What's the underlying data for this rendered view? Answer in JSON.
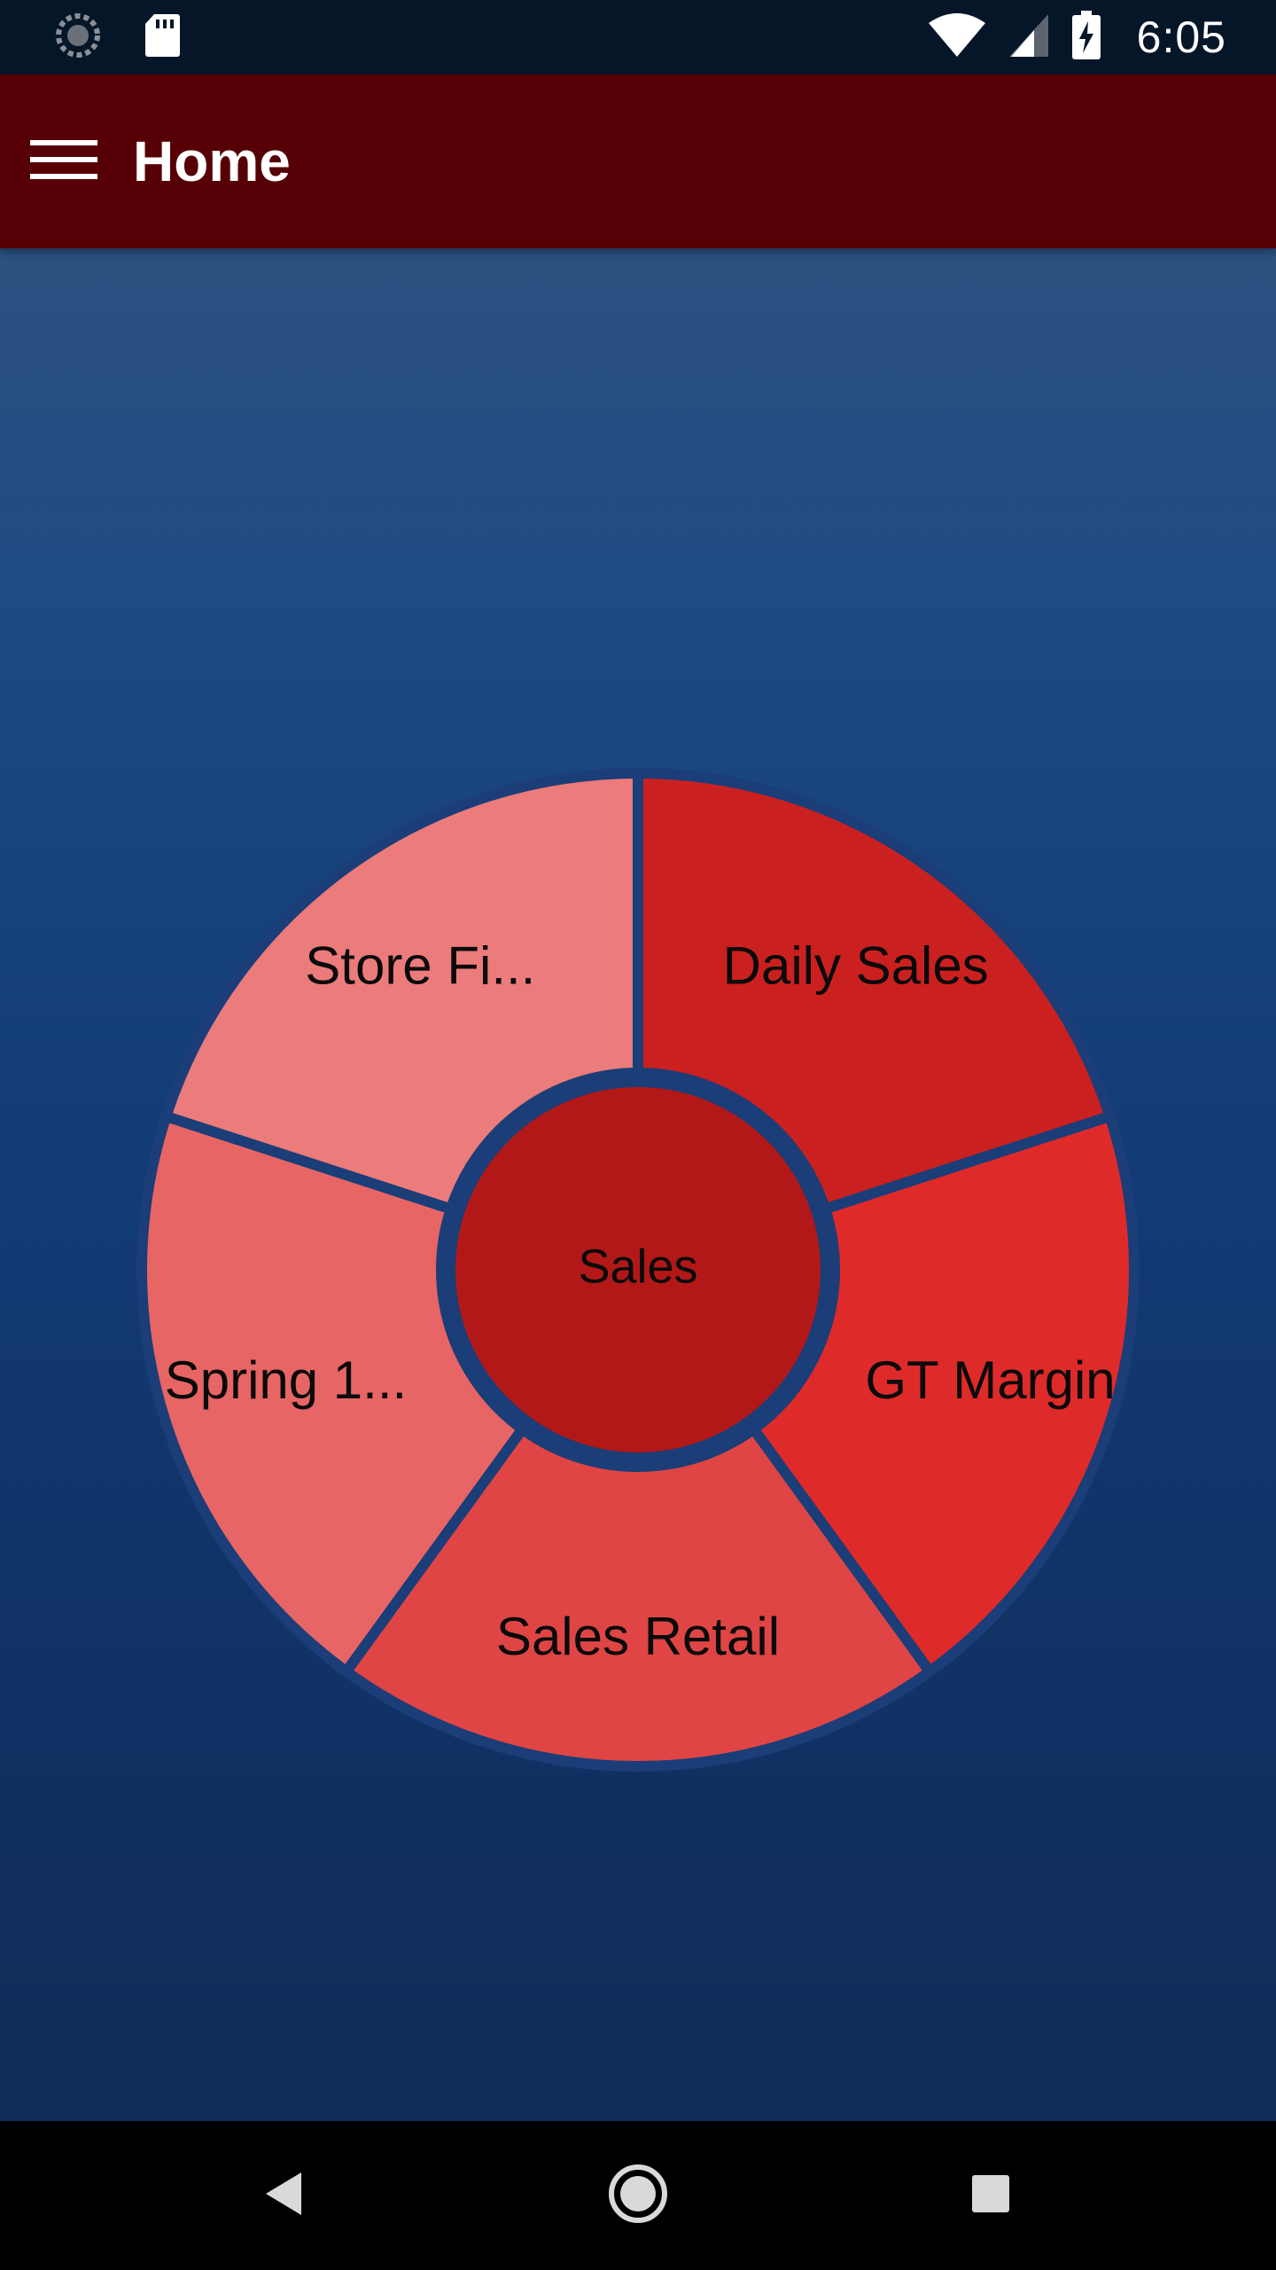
{
  "status_bar": {
    "time": "6:05",
    "left_icons": [
      "sync-icon",
      "sd-card-icon"
    ],
    "right_icons": [
      "wifi-icon",
      "cell-signal-icon",
      "battery-charging-icon"
    ]
  },
  "app_bar": {
    "title": "Home",
    "menu_icon": "hamburger-menu-icon",
    "color": "#560005"
  },
  "wheel": {
    "center": {
      "label": "Sales",
      "color": "#b31818"
    },
    "segments": [
      {
        "label": "Daily Sales",
        "color": "#cb2020"
      },
      {
        "label": "GT Margin",
        "color": "#df2a2a"
      },
      {
        "label": "Sales Retail",
        "color": "#e04545"
      },
      {
        "label": "Spring 1...",
        "color": "#e86565"
      },
      {
        "label": "Store Fi...",
        "color": "#ec7b7b"
      }
    ],
    "separator_color": "#1b3d78"
  },
  "nav_bar": {
    "buttons": [
      "back-icon",
      "home-icon",
      "recents-icon"
    ]
  },
  "colors": {
    "background_top": "#2c5080",
    "background_bottom": "#0f2b58",
    "status_bar": "#061629"
  }
}
